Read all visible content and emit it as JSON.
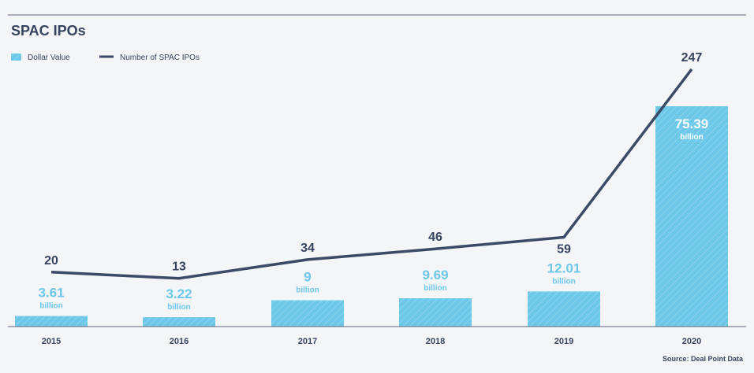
{
  "chart_data": {
    "type": "bar",
    "title": "SPAC IPOs",
    "categories": [
      "2015",
      "2016",
      "2017",
      "2018",
      "2019",
      "2020"
    ],
    "series": [
      {
        "name": "Dollar Value",
        "type": "bar",
        "values": [
          3.61,
          3.22,
          9,
          9.69,
          12.01,
          75.39
        ],
        "value_labels": [
          "3.61",
          "3.22",
          "9",
          "9.69",
          "12.01",
          "75.39"
        ],
        "unit_label": "billion"
      },
      {
        "name": "Number of SPAC IPOs",
        "type": "line",
        "values": [
          20,
          13,
          34,
          46,
          59,
          247
        ],
        "value_labels": [
          "20",
          "13",
          "34",
          "46",
          "59",
          "247"
        ]
      }
    ],
    "legend_position": "top-left",
    "source": "Source: Deal Point Data",
    "grid": false
  },
  "colors": {
    "bar": "#6cc7e8",
    "bar_stripe": "#8ad6f0",
    "line": "#3b4a67",
    "text": "#36445f",
    "bar_label": "#6cc7e8",
    "bar_label_inside": "#ffffff",
    "rule": "#5b6478",
    "background": "#f4f5f7"
  }
}
